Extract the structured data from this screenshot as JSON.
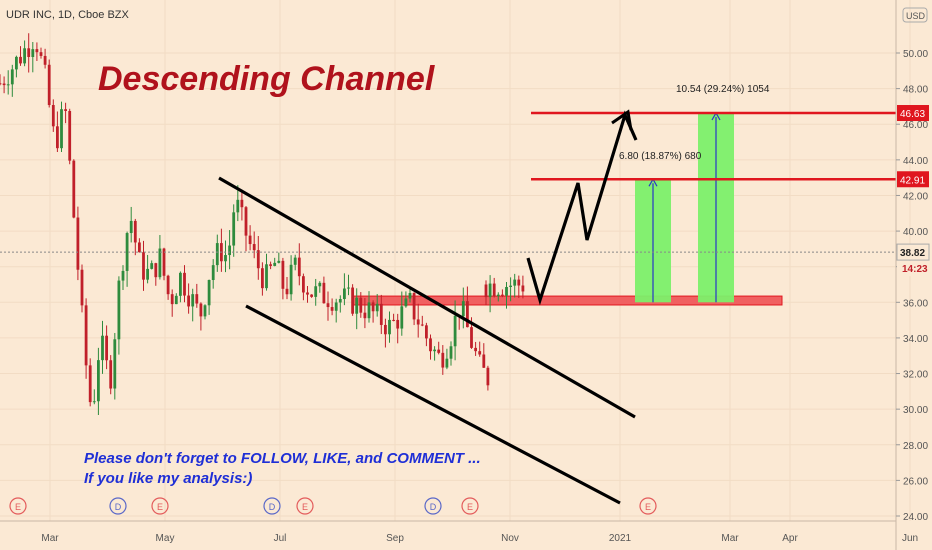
{
  "header": {
    "symbol_info": "UDR INC, 1D, Cboe BZX"
  },
  "chart_data": {
    "type": "line",
    "currency_label": "USD",
    "ylim": [
      24,
      52
    ],
    "y_ticks": [
      "24.00",
      "26.00",
      "28.00",
      "30.00",
      "32.00",
      "34.00",
      "36.00",
      "38.00",
      "40.00",
      "42.00",
      "44.00",
      "46.00",
      "48.00",
      "50.00"
    ],
    "x_ticks": [
      {
        "label": "Mar",
        "t": 0.05
      },
      {
        "label": "May",
        "t": 0.165
      },
      {
        "label": "Jul",
        "t": 0.28
      },
      {
        "label": "Sep",
        "t": 0.395
      },
      {
        "label": "Nov",
        "t": 0.51
      },
      {
        "label": "2021",
        "t": 0.62
      },
      {
        "label": "Mar",
        "t": 0.73
      },
      {
        "label": "Apr",
        "t": 0.79
      },
      {
        "label": "Jun",
        "t": 0.91
      }
    ],
    "price_path": [
      [
        0.0,
        48.3
      ],
      [
        0.02,
        49.8
      ],
      [
        0.035,
        51.0
      ],
      [
        0.045,
        48.6
      ],
      [
        0.055,
        44.8
      ],
      [
        0.065,
        47.0
      ],
      [
        0.075,
        40.0
      ],
      [
        0.085,
        33.0
      ],
      [
        0.092,
        29.6
      ],
      [
        0.1,
        34.0
      ],
      [
        0.11,
        31.5
      ],
      [
        0.12,
        37.5
      ],
      [
        0.13,
        41.0
      ],
      [
        0.14,
        38.0
      ],
      [
        0.15,
        37.5
      ],
      [
        0.16,
        38.5
      ],
      [
        0.17,
        36.0
      ],
      [
        0.18,
        37.5
      ],
      [
        0.19,
        36.4
      ],
      [
        0.2,
        35.2
      ],
      [
        0.21,
        37.8
      ],
      [
        0.22,
        39.0
      ],
      [
        0.228,
        38.5
      ],
      [
        0.235,
        41.8
      ],
      [
        0.245,
        40.0
      ],
      [
        0.255,
        38.4
      ],
      [
        0.265,
        37.2
      ],
      [
        0.275,
        38.2
      ],
      [
        0.285,
        36.6
      ],
      [
        0.295,
        38.0
      ],
      [
        0.31,
        36.6
      ],
      [
        0.33,
        36.3
      ],
      [
        0.35,
        36.1
      ],
      [
        0.37,
        35.5
      ],
      [
        0.39,
        34.6
      ],
      [
        0.41,
        35.9
      ],
      [
        0.42,
        34.8
      ],
      [
        0.43,
        33.6
      ],
      [
        0.44,
        32.8
      ],
      [
        0.45,
        34.0
      ],
      [
        0.46,
        35.9
      ],
      [
        0.47,
        34.0
      ],
      [
        0.48,
        32.3
      ],
      [
        0.49,
        31.6
      ],
      [
        0.5,
        29.8
      ],
      [
        0.51,
        33.0
      ],
      [
        0.52,
        34.6
      ],
      [
        0.523,
        34.2
      ]
    ],
    "price_path_2": [
      [
        0.525,
        37.0
      ],
      [
        0.53,
        40.0
      ],
      [
        0.535,
        41.0
      ],
      [
        0.54,
        39.5
      ],
      [
        0.55,
        40.5
      ],
      [
        0.56,
        39.0
      ]
    ],
    "current_price": "38.82",
    "countdown": "14:23",
    "levels": [
      {
        "label": "46.63",
        "value": 46.63,
        "color": "#e0161e"
      },
      {
        "label": "42.91",
        "value": 42.91,
        "color": "#e0161e"
      }
    ],
    "support_zone": {
      "low": 35.85,
      "high": 36.35
    },
    "channel_upper": [
      [
        0.235,
        42.5
      ],
      [
        0.68,
        30.0
      ]
    ],
    "channel_lower": [
      [
        0.265,
        35.8
      ],
      [
        0.665,
        25.0
      ]
    ],
    "projection_path": [
      [
        0.57,
        38.6
      ],
      [
        0.58,
        36.3
      ],
      [
        0.62,
        42.1
      ],
      [
        0.63,
        39.5
      ],
      [
        0.675,
        46.6
      ],
      [
        0.68,
        45.1
      ]
    ],
    "targets": [
      {
        "label": "6.80 (18.87%) 680",
        "from": 36.0,
        "to": 42.91,
        "t0": 0.68,
        "t1": 0.72
      },
      {
        "label": "10.54 (29.24%) 1054",
        "from": 36.0,
        "to": 46.63,
        "t0": 0.75,
        "t1": 0.79
      }
    ],
    "event_markers": [
      {
        "label": "E",
        "t": 0.02
      },
      {
        "label": "D",
        "t": 0.125
      },
      {
        "label": "E",
        "t": 0.17
      },
      {
        "label": "D",
        "t": 0.29
      },
      {
        "label": "E",
        "t": 0.325
      },
      {
        "label": "D",
        "t": 0.465
      },
      {
        "label": "E",
        "t": 0.505
      },
      {
        "label": "E",
        "t": 0.695
      }
    ]
  },
  "annotations": {
    "title": "Descending Channel",
    "cta_line1": "Please don't forget to FOLLOW, LIKE, and COMMENT ...",
    "cta_line2": "If you like my analysis:)"
  },
  "colors": {
    "background": "#fbe9d4",
    "up": "#2e8b3d",
    "down": "#c0202a",
    "level": "#e0161e",
    "target_fill": "#7cf06a",
    "axis_text": "#555555",
    "title": "#b0121c",
    "cta": "#1f2fd6"
  }
}
